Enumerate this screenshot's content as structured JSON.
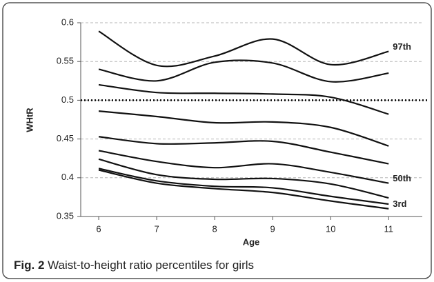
{
  "chart_data": {
    "type": "line",
    "x_label": "Age",
    "y_label": "WHtR",
    "x": [
      6,
      7,
      8,
      9,
      10,
      11
    ],
    "xlim": [
      5.69,
      11.58
    ],
    "xticks": [
      6,
      7,
      8,
      9,
      10,
      11
    ],
    "ylim": [
      0.35,
      0.6
    ],
    "yticks": [
      0.6,
      0.55,
      0.5,
      0.45,
      0.4,
      0.35
    ],
    "grid": true,
    "reference_line": 0.5,
    "series": [
      {
        "name": "97th",
        "color": "#111111",
        "values": [
          0.589,
          0.545,
          0.557,
          0.579,
          0.546,
          0.563
        ]
      },
      {
        "color": "#111111",
        "values": [
          0.54,
          0.525,
          0.549,
          0.548,
          0.524,
          0.535
        ]
      },
      {
        "color": "#111111",
        "values": [
          0.52,
          0.51,
          0.509,
          0.508,
          0.504,
          0.482
        ]
      },
      {
        "color": "#111111",
        "values": [
          0.486,
          0.479,
          0.471,
          0.472,
          0.465,
          0.441
        ]
      },
      {
        "color": "#111111",
        "values": [
          0.453,
          0.444,
          0.445,
          0.447,
          0.433,
          0.418
        ]
      },
      {
        "name": "50th",
        "color": "#111111",
        "values": [
          0.435,
          0.421,
          0.413,
          0.418,
          0.407,
          0.393
        ]
      },
      {
        "color": "#111111",
        "values": [
          0.424,
          0.404,
          0.398,
          0.399,
          0.392,
          0.374
        ]
      },
      {
        "color": "#111111",
        "values": [
          0.412,
          0.396,
          0.389,
          0.387,
          0.376,
          0.366
        ]
      },
      {
        "name": "3rd",
        "color": "#111111",
        "values": [
          0.41,
          0.393,
          0.386,
          0.381,
          0.37,
          0.36
        ]
      }
    ]
  },
  "caption": {
    "label": "Fig. 2",
    "text": "Waist-to-height ratio percentiles for girls"
  }
}
